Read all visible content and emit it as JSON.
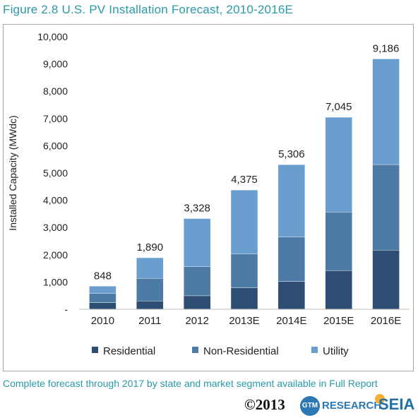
{
  "title": "Figure 2.8  U.S. PV Installation Forecast, 2010-2016E",
  "footnote": "Complete forecast through 2017 by state and market segment  available in Full Report",
  "copyright": "©2013",
  "logos": {
    "gtm": "GTM",
    "research": "RESEARCH",
    "seia": "SEIA"
  },
  "colors": {
    "residential": "#2e4d73",
    "non_residential": "#4e7ba6",
    "utility": "#6a9ecf",
    "title": "#2a9aa8"
  },
  "chart_data": {
    "type": "bar",
    "stacked": true,
    "categories": [
      "2010",
      "2011",
      "2012",
      "2013E",
      "2014E",
      "2015E",
      "2016E"
    ],
    "series": [
      {
        "name": "Residential",
        "values": [
          245,
          305,
          495,
          790,
          1020,
          1420,
          2170
        ]
      },
      {
        "name": "Non-Residential",
        "values": [
          340,
          830,
          1065,
          1240,
          1635,
          2150,
          3140
        ]
      },
      {
        "name": "Utility",
        "values": [
          263,
          755,
          1768,
          2345,
          2651,
          3475,
          3876
        ]
      }
    ],
    "totals": [
      "848",
      "1,890",
      "3,328",
      "4,375",
      "5,306",
      "7,045",
      "9,186"
    ],
    "ylabel": "Installed Capacity (MWdc)",
    "ylim": [
      0,
      10000
    ],
    "yticks": [
      {
        "value": 0,
        "label": "-"
      },
      {
        "value": 1000,
        "label": "1,000"
      },
      {
        "value": 2000,
        "label": "2,000"
      },
      {
        "value": 3000,
        "label": "3,000"
      },
      {
        "value": 4000,
        "label": "4,000"
      },
      {
        "value": 5000,
        "label": "5,000"
      },
      {
        "value": 6000,
        "label": "6,000"
      },
      {
        "value": 7000,
        "label": "7,000"
      },
      {
        "value": 8000,
        "label": "8,000"
      },
      {
        "value": 9000,
        "label": "9,000"
      },
      {
        "value": 10000,
        "label": "10,000"
      }
    ],
    "grid": false,
    "legend_position": "bottom"
  }
}
